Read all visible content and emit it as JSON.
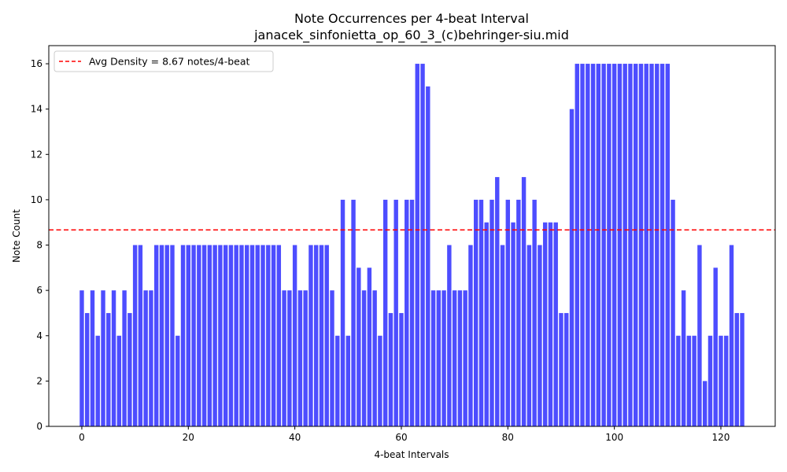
{
  "chart_data": {
    "type": "bar",
    "title": "Note Occurrences per 4-beat Interval",
    "subtitle": "janacek_sinfonietta_op_60_3_(c)behringer-siu.mid",
    "xlabel": "4-beat Intervals",
    "ylabel": "Note Count",
    "xlim": [
      -6.2,
      130.2
    ],
    "ylim": [
      0,
      16.8
    ],
    "xticks": [
      0,
      20,
      40,
      60,
      80,
      100,
      120
    ],
    "yticks": [
      0,
      2,
      4,
      6,
      8,
      10,
      12,
      14,
      16
    ],
    "bar_color": "#4d4dff",
    "legend": {
      "placement": "top-left",
      "entries": [
        {
          "label": "Avg Density = 8.67 notes/4-beat",
          "color": "#ff0000",
          "style": "dashed"
        }
      ]
    },
    "reference_line": {
      "y": 8.67,
      "color": "#ff0000",
      "style": "dashed"
    },
    "x": [
      0,
      1,
      2,
      3,
      4,
      5,
      6,
      7,
      8,
      9,
      10,
      11,
      12,
      13,
      14,
      15,
      16,
      17,
      18,
      19,
      20,
      21,
      22,
      23,
      24,
      25,
      26,
      27,
      28,
      29,
      30,
      31,
      32,
      33,
      34,
      35,
      36,
      37,
      38,
      39,
      40,
      41,
      42,
      43,
      44,
      45,
      46,
      47,
      48,
      49,
      50,
      51,
      52,
      53,
      54,
      55,
      56,
      57,
      58,
      59,
      60,
      61,
      62,
      63,
      64,
      65,
      66,
      67,
      68,
      69,
      70,
      71,
      72,
      73,
      74,
      75,
      76,
      77,
      78,
      79,
      80,
      81,
      82,
      83,
      84,
      85,
      86,
      87,
      88,
      89,
      90,
      91,
      92,
      93,
      94,
      95,
      96,
      97,
      98,
      99,
      100,
      101,
      102,
      103,
      104,
      105,
      106,
      107,
      108,
      109,
      110,
      111,
      112,
      113,
      114,
      115,
      116,
      117,
      118,
      119,
      120,
      121,
      122,
      123,
      124
    ],
    "values": [
      6,
      5,
      6,
      4,
      6,
      5,
      6,
      4,
      6,
      5,
      8,
      8,
      6,
      6,
      8,
      8,
      8,
      8,
      4,
      8,
      8,
      8,
      8,
      8,
      8,
      8,
      8,
      8,
      8,
      8,
      8,
      8,
      8,
      8,
      8,
      8,
      8,
      8,
      6,
      6,
      8,
      6,
      6,
      8,
      8,
      8,
      8,
      6,
      4,
      10,
      4,
      10,
      7,
      6,
      7,
      6,
      4,
      10,
      5,
      10,
      5,
      10,
      10,
      16,
      16,
      15,
      6,
      6,
      6,
      8,
      6,
      6,
      6,
      8,
      10,
      10,
      9,
      10,
      11,
      8,
      10,
      9,
      10,
      11,
      8,
      10,
      8,
      9,
      9,
      9,
      5,
      5,
      14,
      16,
      16,
      16,
      16,
      16,
      16,
      16,
      16,
      16,
      16,
      16,
      16,
      16,
      16,
      16,
      16,
      16,
      16,
      10,
      4,
      6,
      4,
      4,
      8,
      2,
      4,
      7,
      4,
      4,
      8,
      5,
      5
    ]
  }
}
